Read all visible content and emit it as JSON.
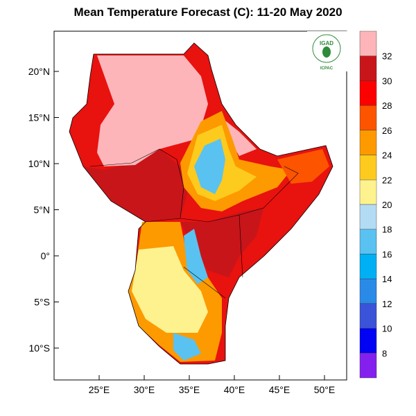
{
  "title": "Mean Temperature Forecast (C): 11-20 May 2020",
  "map": {
    "lon_ticks": [
      "25°E",
      "30°E",
      "35°E",
      "40°E",
      "45°E",
      "50°E"
    ],
    "lat_ticks": [
      "20°N",
      "15°N",
      "10°N",
      "5°N",
      "0°",
      "5°S",
      "10°S"
    ],
    "region": "Greater Horn of Africa"
  },
  "colorbar": {
    "labels": [
      "32",
      "30",
      "28",
      "26",
      "24",
      "22",
      "20",
      "18",
      "16",
      "14",
      "12",
      "10",
      "8"
    ],
    "colors": [
      "#fdb5b9",
      "#c8151a",
      "#fd0000",
      "#fd5400",
      "#fd9a00",
      "#fdca1e",
      "#fdf28e",
      "#b3dcf4",
      "#59c2f1",
      "#00b0f4",
      "#2a8ae8",
      "#3b53d8",
      "#0202f4",
      "#8420ee"
    ]
  },
  "logo": {
    "top_text": "IGAD",
    "bottom_text": "ICPAC",
    "green": "#2e8b3a"
  }
}
